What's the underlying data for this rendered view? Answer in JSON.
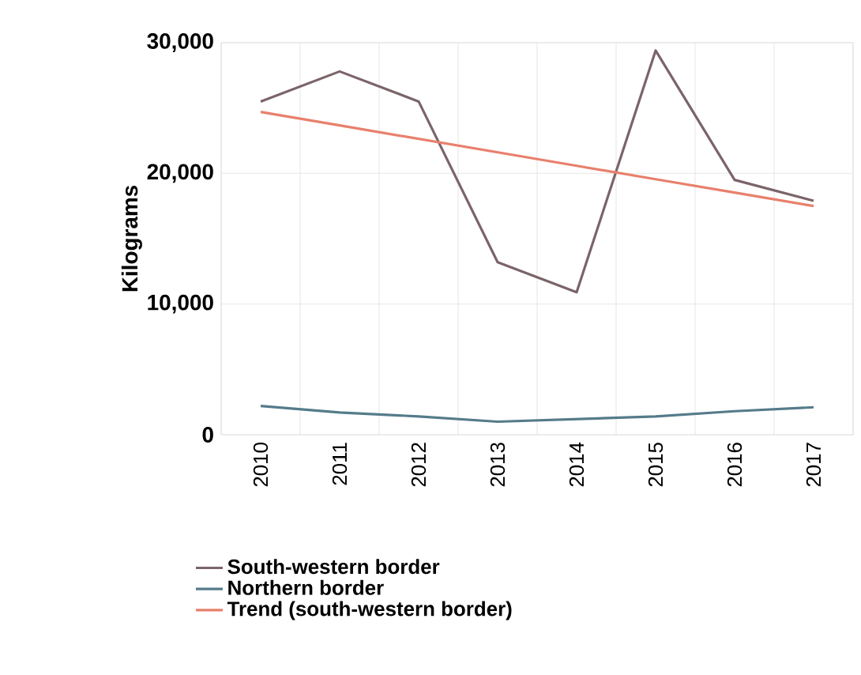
{
  "chart_data": {
    "type": "line",
    "ylabel": "Kilograms",
    "categories": [
      "2010",
      "2011",
      "2012",
      "2013",
      "2014",
      "2015",
      "2016",
      "2017"
    ],
    "series": [
      {
        "name": "South-western border",
        "color": "#7b6469",
        "values": [
          25500,
          27800,
          25500,
          13200,
          10900,
          29400,
          19500,
          17900
        ]
      },
      {
        "name": "Northern border",
        "color": "#557b8a",
        "values": [
          2200,
          1700,
          1400,
          1000,
          1200,
          1400,
          1800,
          2100
        ]
      },
      {
        "name": "Trend (south-western border)",
        "color": "#e8806c",
        "values": [
          24700,
          23670,
          22640,
          21610,
          20580,
          19550,
          18530,
          17500
        ]
      }
    ],
    "ylim": [
      0,
      30000
    ],
    "yticks": [
      {
        "value": 0,
        "label": "0"
      },
      {
        "value": 10000,
        "label": "10,000"
      },
      {
        "value": 20000,
        "label": "20,000"
      },
      {
        "value": 30000,
        "label": "30,000"
      }
    ],
    "grid": true,
    "legend": "bottom",
    "marker": "none",
    "line_style": "solid"
  }
}
